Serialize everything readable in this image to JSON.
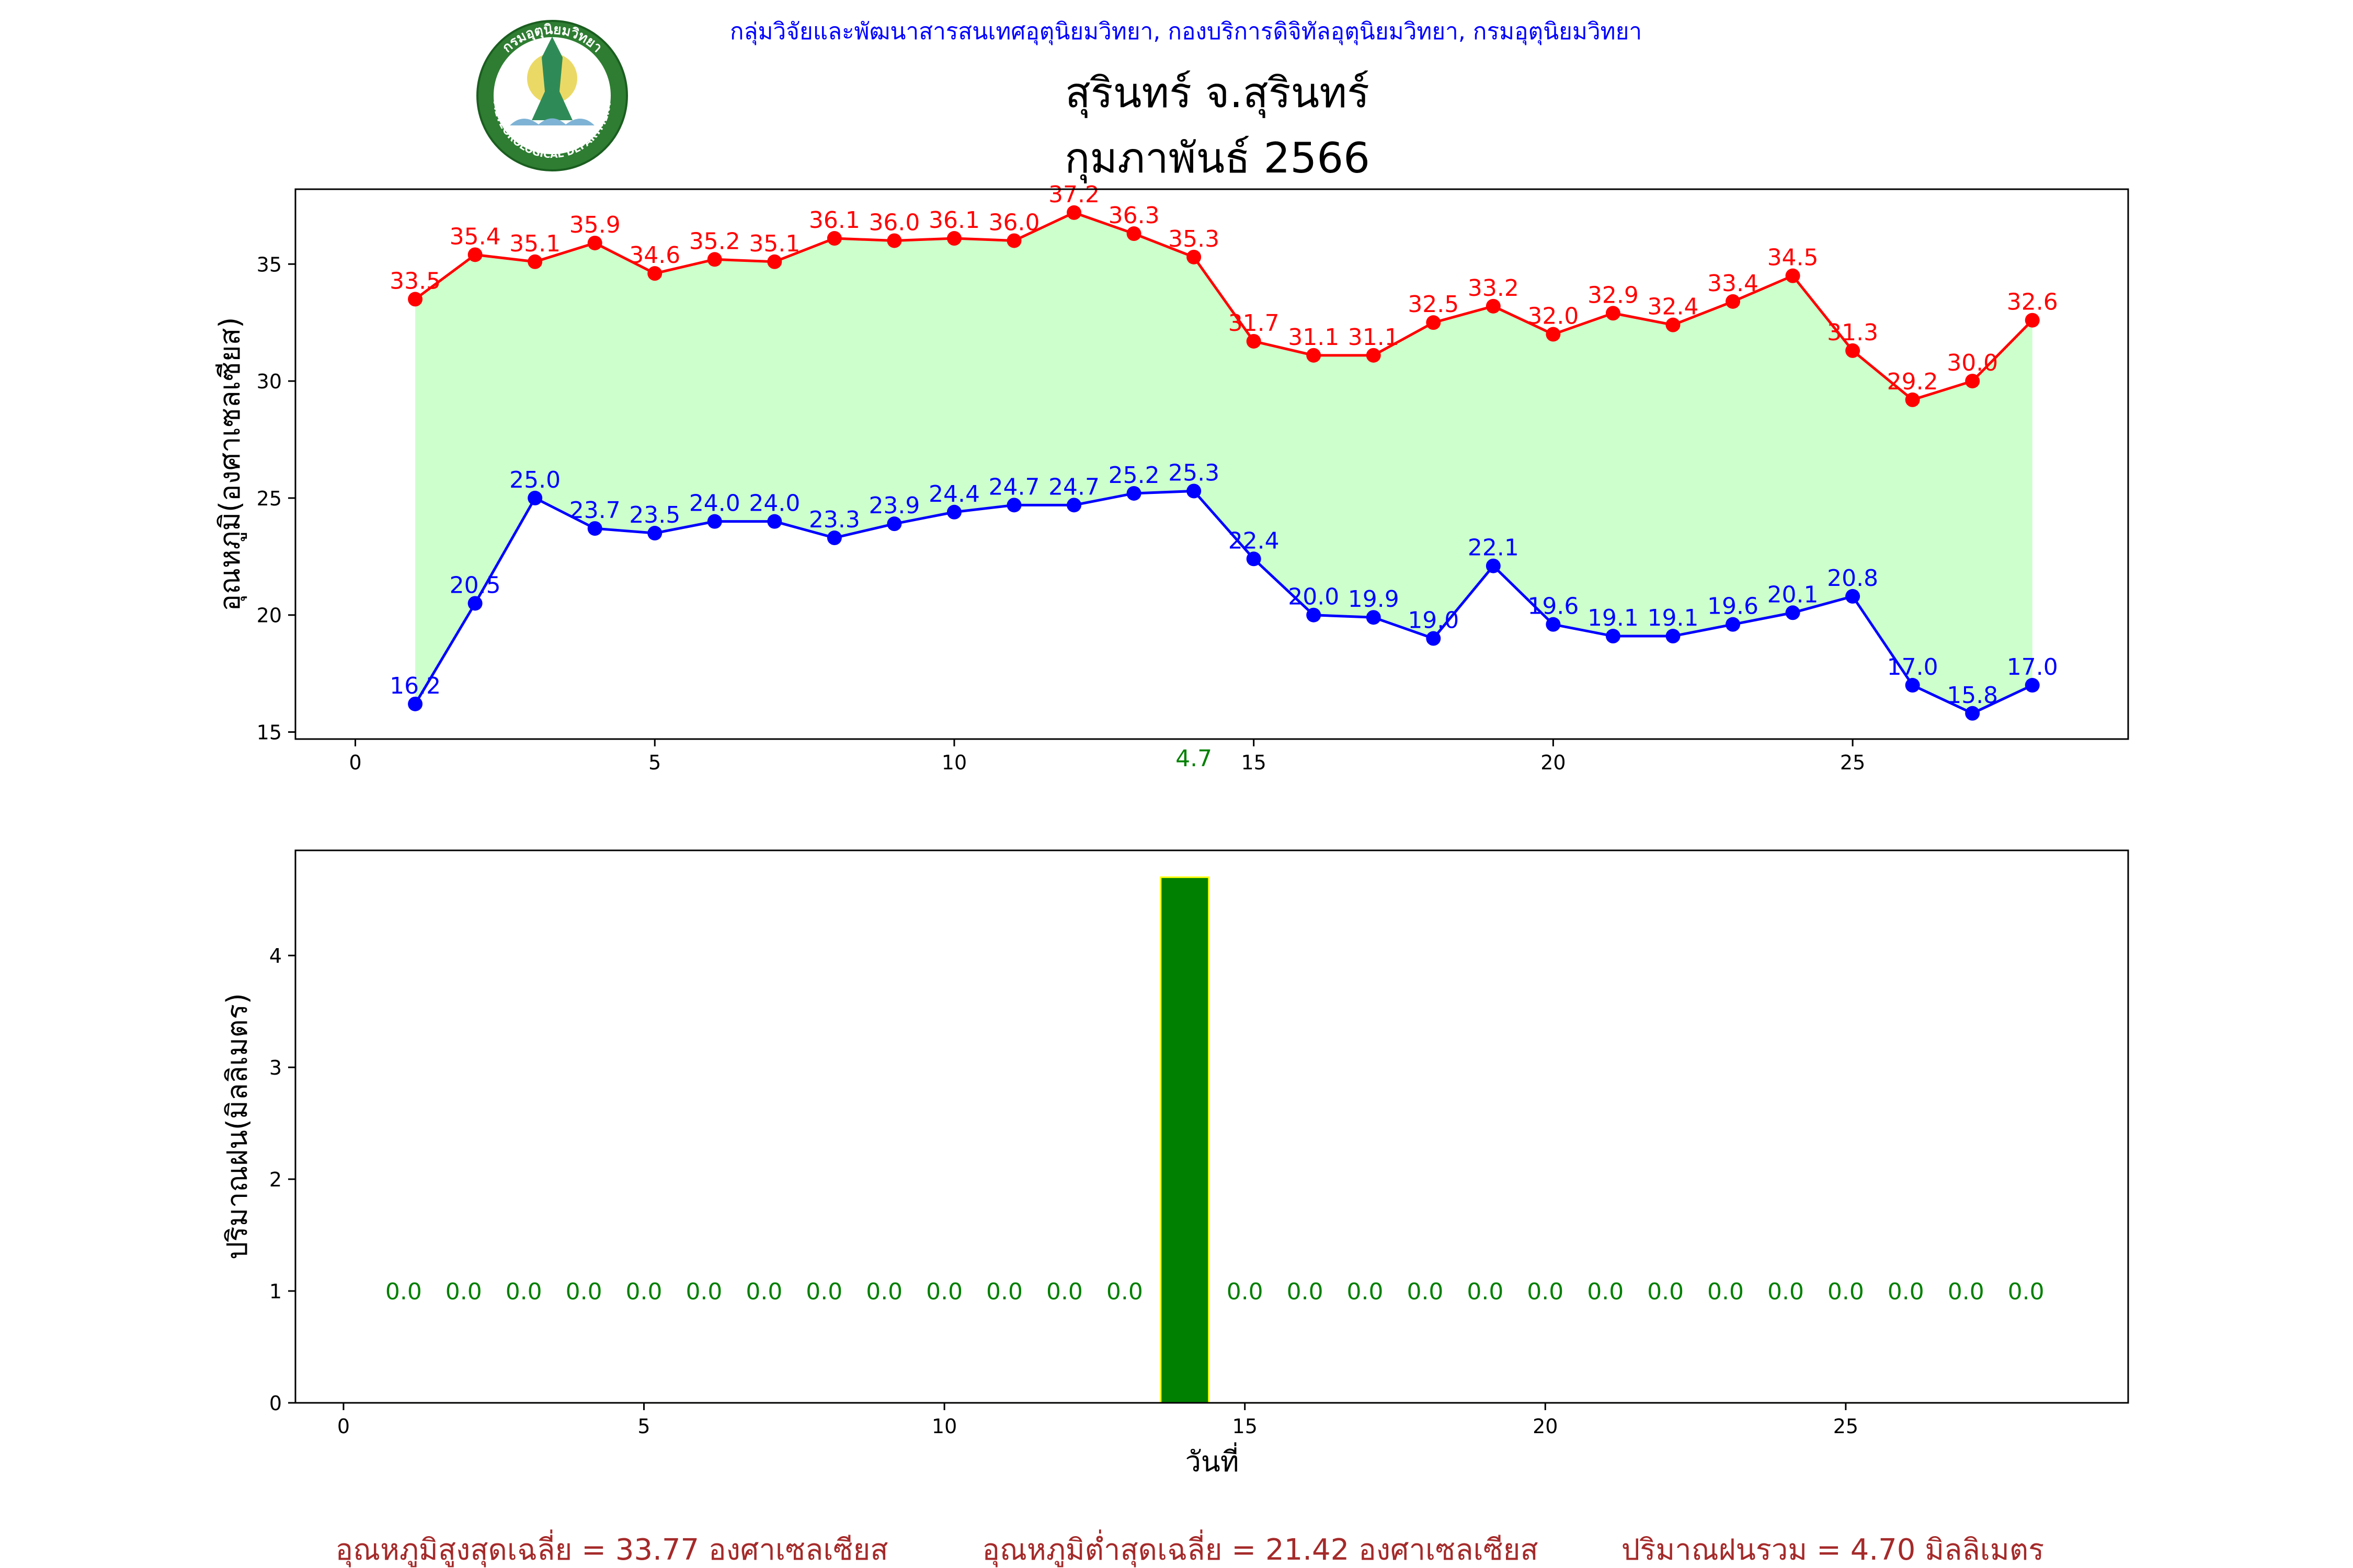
{
  "header": {
    "org_line": "กลุ่มวิจัยและพัฒนาสารสนเทศอุตุนิยมวิทยา, กองบริการดิจิทัลอุตุนิยมวิทยา, กรมอุตุนิยมวิทยา",
    "station": "สุรินทร์ จ.สุรินทร์",
    "period": "กุมภาพันธ์ 2566",
    "logo_text": "กรมอุตุนิยมวิทยา",
    "logo_text_en": "METEOROLOGICAL DEPARTMENT"
  },
  "colors": {
    "max_line": "#ff0000",
    "min_line": "#0000ff",
    "fill": "#ccffcc",
    "rain_bar": "#008000",
    "rain_edge": "#ffff00",
    "footer_text": "#a52a2a",
    "org_text": "#0000ff"
  },
  "chart_data": [
    {
      "type": "line",
      "ylabel": "อุณหภูมิ(องศาเซลเซียส)",
      "xlabel": "",
      "xlim": [
        -1,
        29.6
      ],
      "ylim": [
        14.7,
        38.2
      ],
      "xticks": [
        0,
        5,
        10,
        15,
        20,
        25
      ],
      "yticks": [
        15,
        20,
        25,
        30,
        35
      ],
      "x": [
        1,
        2,
        3,
        4,
        5,
        6,
        7,
        8,
        9,
        10,
        11,
        12,
        13,
        14,
        15,
        16,
        17,
        18,
        19,
        20,
        21,
        22,
        23,
        24,
        25,
        26,
        27,
        28
      ],
      "series": [
        {
          "key": "max",
          "values": [
            33.5,
            35.4,
            35.1,
            35.9,
            34.6,
            35.2,
            35.1,
            36.1,
            36.0,
            36.1,
            36.0,
            37.2,
            36.3,
            35.3,
            31.7,
            31.1,
            31.1,
            32.5,
            33.2,
            32.0,
            32.9,
            32.4,
            33.4,
            34.5,
            31.3,
            29.2,
            30.0,
            32.6
          ],
          "labels": [
            "33.5",
            "35.4",
            "35.1",
            "35.9",
            "34.6",
            "35.2",
            "35.1",
            "36.1",
            "36.0",
            "36.1",
            "36.0",
            "37.2",
            "36.3",
            "35.3",
            "31.7",
            "31.1",
            "31.1",
            "32.5",
            "33.2",
            "32.0",
            "32.9",
            "32.4",
            "33.4",
            "34.5",
            "31.3",
            "29.2",
            "30.0",
            "32.6"
          ]
        },
        {
          "key": "min",
          "values": [
            16.2,
            20.5,
            25.0,
            23.7,
            23.5,
            24.0,
            24.0,
            23.3,
            23.9,
            24.4,
            24.7,
            24.7,
            25.2,
            25.3,
            22.4,
            20.0,
            19.9,
            19.0,
            22.1,
            19.6,
            19.1,
            19.1,
            19.6,
            20.1,
            20.8,
            17.0,
            15.8,
            17.0
          ],
          "labels": [
            "16.2",
            "20.5",
            "25.0",
            "23.7",
            "23.5",
            "24.0",
            "24.0",
            "23.3",
            "23.9",
            "24.4",
            "24.7",
            "24.7",
            "25.2",
            "25.3",
            "22.4",
            "20.0",
            "19.9",
            "19.0",
            "22.1",
            "19.6",
            "19.1",
            "19.1",
            "19.6",
            "20.1",
            "20.8",
            "17.0",
            "15.8",
            "17.0"
          ]
        }
      ],
      "annotations": [
        {
          "x": 14,
          "text": "4.7"
        }
      ],
      "grid": false
    },
    {
      "type": "bar",
      "ylabel": "ปริมาณฝน(มิลลิเมตร)",
      "xlabel": "วันที่",
      "xlim": [
        -0.8,
        29.7
      ],
      "ylim": [
        0,
        4.94
      ],
      "xticks": [
        0,
        5,
        10,
        15,
        20,
        25
      ],
      "yticks": [
        0,
        1,
        2,
        3,
        4
      ],
      "x": [
        1,
        2,
        3,
        4,
        5,
        6,
        7,
        8,
        9,
        10,
        11,
        12,
        13,
        14,
        15,
        16,
        17,
        18,
        19,
        20,
        21,
        22,
        23,
        24,
        25,
        26,
        27,
        28
      ],
      "values": [
        0,
        0,
        0,
        0,
        0,
        0,
        0,
        0,
        0,
        0,
        0,
        0,
        0,
        4.7,
        0,
        0,
        0,
        0,
        0,
        0,
        0,
        0,
        0,
        0,
        0,
        0,
        0,
        0
      ],
      "labels": [
        "0.0",
        "0.0",
        "0.0",
        "0.0",
        "0.0",
        "0.0",
        "0.0",
        "0.0",
        "0.0",
        "0.0",
        "0.0",
        "0.0",
        "0.0",
        "",
        "0.0",
        "0.0",
        "0.0",
        "0.0",
        "0.0",
        "0.0",
        "0.0",
        "0.0",
        "0.0",
        "0.0",
        "0.0",
        "0.0",
        "0.0",
        "0.0"
      ],
      "grid": false
    }
  ],
  "footer": {
    "avg_max": "อุณหภูมิสูงสุดเฉลี่ย = 33.77 องศาเซลเซียส",
    "avg_min": "อุณหภูมิต่ำสุดเฉลี่ย = 21.42 องศาเซลเซียส",
    "total_rain": "ปริมาณฝนรวม = 4.70 มิลลิเมตร"
  }
}
